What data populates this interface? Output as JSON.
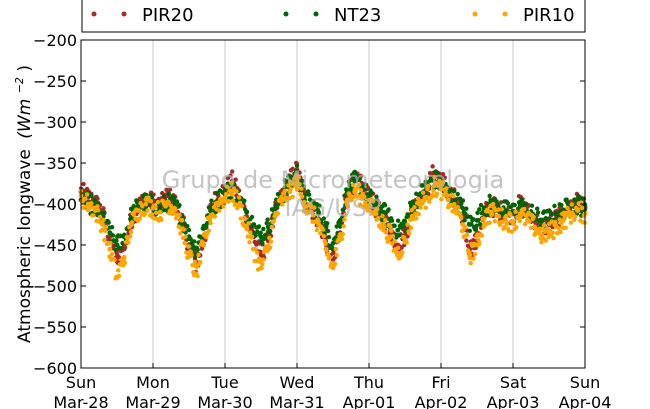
{
  "chart_data": {
    "type": "scatter",
    "ylabel": "Atmospheric longwave",
    "ylabel_unit": "(Wm",
    "ylabel_unit_exp": "−2",
    "ylabel_unit_close": ")",
    "ylim": [
      -600,
      -200
    ],
    "yticks": [
      -200,
      -250,
      -300,
      -350,
      -400,
      -450,
      -500,
      -550,
      -600
    ],
    "ytick_labels": [
      "−200",
      "−250",
      "−300",
      "−350",
      "−400",
      "−450",
      "−500",
      "−550",
      "−600"
    ],
    "xlim_days": [
      0,
      7
    ],
    "xticks": [
      {
        "day": "Sun",
        "date": "Mar-28"
      },
      {
        "day": "Mon",
        "date": "Mar-29"
      },
      {
        "day": "Tue",
        "date": "Mar-30"
      },
      {
        "day": "Wed",
        "date": "Mar-31"
      },
      {
        "day": "Thu",
        "date": "Apr-01"
      },
      {
        "day": "Fri",
        "date": "Apr-02"
      },
      {
        "day": "Sat",
        "date": "Apr-03"
      },
      {
        "day": "Sun",
        "date": "Apr-04"
      }
    ],
    "grid": "vertical",
    "legend_position": "top",
    "watermark": [
      "Grupo de Micrometeorologia",
      "IAG/USP"
    ],
    "series": [
      {
        "name": "PIR20",
        "color": "#a52a2a",
        "points": [
          [
            0.0,
            -385
          ],
          [
            0.1,
            -392
          ],
          [
            0.2,
            -398
          ],
          [
            0.3,
            -412
          ],
          [
            0.4,
            -440
          ],
          [
            0.5,
            -470
          ],
          [
            0.6,
            -455
          ],
          [
            0.7,
            -418
          ],
          [
            0.8,
            -402
          ],
          [
            0.9,
            -395
          ],
          [
            1.0,
            -398
          ],
          [
            1.1,
            -402
          ],
          [
            1.2,
            -390
          ],
          [
            1.3,
            -398
          ],
          [
            1.4,
            -420
          ],
          [
            1.5,
            -450
          ],
          [
            1.6,
            -475
          ],
          [
            1.7,
            -445
          ],
          [
            1.8,
            -408
          ],
          [
            1.9,
            -388
          ],
          [
            2.0,
            -383
          ],
          [
            2.1,
            -372
          ],
          [
            2.2,
            -392
          ],
          [
            2.3,
            -415
          ],
          [
            2.4,
            -440
          ],
          [
            2.5,
            -462
          ],
          [
            2.6,
            -445
          ],
          [
            2.7,
            -410
          ],
          [
            2.8,
            -385
          ],
          [
            2.9,
            -372
          ],
          [
            3.0,
            -358
          ],
          [
            3.1,
            -392
          ],
          [
            3.2,
            -405
          ],
          [
            3.3,
            -418
          ],
          [
            3.4,
            -445
          ],
          [
            3.5,
            -468
          ],
          [
            3.6,
            -435
          ],
          [
            3.7,
            -385
          ],
          [
            3.8,
            -372
          ],
          [
            3.9,
            -378
          ],
          [
            4.0,
            -392
          ],
          [
            4.1,
            -405
          ],
          [
            4.2,
            -418
          ],
          [
            4.3,
            -432
          ],
          [
            4.4,
            -450
          ],
          [
            4.5,
            -438
          ],
          [
            4.6,
            -410
          ],
          [
            4.7,
            -392
          ],
          [
            4.8,
            -382
          ],
          [
            4.9,
            -362
          ],
          [
            5.0,
            -368
          ],
          [
            5.1,
            -385
          ],
          [
            5.2,
            -395
          ],
          [
            5.3,
            -415
          ],
          [
            5.4,
            -455
          ],
          [
            5.5,
            -445
          ],
          [
            5.6,
            -412
          ],
          [
            5.7,
            -402
          ],
          [
            5.8,
            -408
          ],
          [
            5.9,
            -410
          ],
          [
            6.0,
            -412
          ],
          [
            6.1,
            -400
          ],
          [
            6.2,
            -410
          ],
          [
            6.3,
            -418
          ],
          [
            6.4,
            -428
          ],
          [
            6.5,
            -425
          ],
          [
            6.6,
            -418
          ],
          [
            6.7,
            -410
          ],
          [
            6.8,
            -400
          ],
          [
            6.9,
            -398
          ],
          [
            7.0,
            -403
          ]
        ]
      },
      {
        "name": "NT23",
        "color": "#006400",
        "points": [
          [
            0.0,
            -395
          ],
          [
            0.1,
            -398
          ],
          [
            0.2,
            -405
          ],
          [
            0.3,
            -418
          ],
          [
            0.4,
            -435
          ],
          [
            0.5,
            -450
          ],
          [
            0.6,
            -440
          ],
          [
            0.7,
            -415
          ],
          [
            0.8,
            -402
          ],
          [
            0.9,
            -398
          ],
          [
            1.0,
            -402
          ],
          [
            1.1,
            -405
          ],
          [
            1.2,
            -398
          ],
          [
            1.3,
            -402
          ],
          [
            1.4,
            -415
          ],
          [
            1.5,
            -440
          ],
          [
            1.6,
            -455
          ],
          [
            1.7,
            -430
          ],
          [
            1.8,
            -408
          ],
          [
            1.9,
            -395
          ],
          [
            2.0,
            -388
          ],
          [
            2.1,
            -380
          ],
          [
            2.2,
            -395
          ],
          [
            2.3,
            -410
          ],
          [
            2.4,
            -425
          ],
          [
            2.5,
            -440
          ],
          [
            2.6,
            -428
          ],
          [
            2.7,
            -405
          ],
          [
            2.8,
            -388
          ],
          [
            2.9,
            -375
          ],
          [
            3.0,
            -362
          ],
          [
            3.1,
            -390
          ],
          [
            3.2,
            -400
          ],
          [
            3.3,
            -410
          ],
          [
            3.4,
            -430
          ],
          [
            3.5,
            -448
          ],
          [
            3.6,
            -420
          ],
          [
            3.7,
            -385
          ],
          [
            3.8,
            -372
          ],
          [
            3.9,
            -380
          ],
          [
            4.0,
            -392
          ],
          [
            4.1,
            -402
          ],
          [
            4.2,
            -410
          ],
          [
            4.3,
            -420
          ],
          [
            4.4,
            -432
          ],
          [
            4.5,
            -425
          ],
          [
            4.6,
            -402
          ],
          [
            4.7,
            -390
          ],
          [
            4.8,
            -380
          ],
          [
            4.9,
            -370
          ],
          [
            5.0,
            -375
          ],
          [
            5.1,
            -388
          ],
          [
            5.2,
            -395
          ],
          [
            5.3,
            -405
          ],
          [
            5.4,
            -425
          ],
          [
            5.5,
            -420
          ],
          [
            5.6,
            -405
          ],
          [
            5.7,
            -400
          ],
          [
            5.8,
            -405
          ],
          [
            5.9,
            -408
          ],
          [
            6.0,
            -410
          ],
          [
            6.1,
            -402
          ],
          [
            6.2,
            -410
          ],
          [
            6.3,
            -415
          ],
          [
            6.4,
            -420
          ],
          [
            6.5,
            -418
          ],
          [
            6.6,
            -412
          ],
          [
            6.7,
            -408
          ],
          [
            6.8,
            -402
          ],
          [
            6.9,
            -400
          ],
          [
            7.0,
            -405
          ]
        ]
      },
      {
        "name": "PIR10",
        "color": "#ffa500",
        "points": [
          [
            0.0,
            -390
          ],
          [
            0.1,
            -400
          ],
          [
            0.2,
            -408
          ],
          [
            0.3,
            -425
          ],
          [
            0.4,
            -455
          ],
          [
            0.5,
            -490
          ],
          [
            0.6,
            -465
          ],
          [
            0.7,
            -425
          ],
          [
            0.8,
            -408
          ],
          [
            0.9,
            -400
          ],
          [
            1.0,
            -405
          ],
          [
            1.1,
            -410
          ],
          [
            1.2,
            -398
          ],
          [
            1.3,
            -405
          ],
          [
            1.4,
            -430
          ],
          [
            1.5,
            -462
          ],
          [
            1.6,
            -485
          ],
          [
            1.7,
            -450
          ],
          [
            1.8,
            -415
          ],
          [
            1.9,
            -400
          ],
          [
            2.0,
            -392
          ],
          [
            2.1,
            -385
          ],
          [
            2.2,
            -402
          ],
          [
            2.3,
            -428
          ],
          [
            2.4,
            -455
          ],
          [
            2.5,
            -478
          ],
          [
            2.6,
            -452
          ],
          [
            2.7,
            -415
          ],
          [
            2.8,
            -395
          ],
          [
            2.9,
            -385
          ],
          [
            3.0,
            -372
          ],
          [
            3.1,
            -398
          ],
          [
            3.2,
            -410
          ],
          [
            3.3,
            -425
          ],
          [
            3.4,
            -455
          ],
          [
            3.5,
            -478
          ],
          [
            3.6,
            -442
          ],
          [
            3.7,
            -395
          ],
          [
            3.8,
            -385
          ],
          [
            3.9,
            -390
          ],
          [
            4.0,
            -402
          ],
          [
            4.1,
            -412
          ],
          [
            4.2,
            -425
          ],
          [
            4.3,
            -440
          ],
          [
            4.4,
            -460
          ],
          [
            4.5,
            -445
          ],
          [
            4.6,
            -415
          ],
          [
            4.7,
            -400
          ],
          [
            4.8,
            -392
          ],
          [
            4.9,
            -378
          ],
          [
            5.0,
            -382
          ],
          [
            5.1,
            -395
          ],
          [
            5.2,
            -405
          ],
          [
            5.3,
            -425
          ],
          [
            5.4,
            -462
          ],
          [
            5.5,
            -450
          ],
          [
            5.6,
            -418
          ],
          [
            5.7,
            -410
          ],
          [
            5.8,
            -415
          ],
          [
            5.9,
            -420
          ],
          [
            6.0,
            -422
          ],
          [
            6.1,
            -412
          ],
          [
            6.2,
            -420
          ],
          [
            6.3,
            -428
          ],
          [
            6.4,
            -438
          ],
          [
            6.5,
            -435
          ],
          [
            6.6,
            -428
          ],
          [
            6.7,
            -420
          ],
          [
            6.8,
            -412
          ],
          [
            6.9,
            -408
          ],
          [
            7.0,
            -412
          ]
        ]
      }
    ]
  }
}
